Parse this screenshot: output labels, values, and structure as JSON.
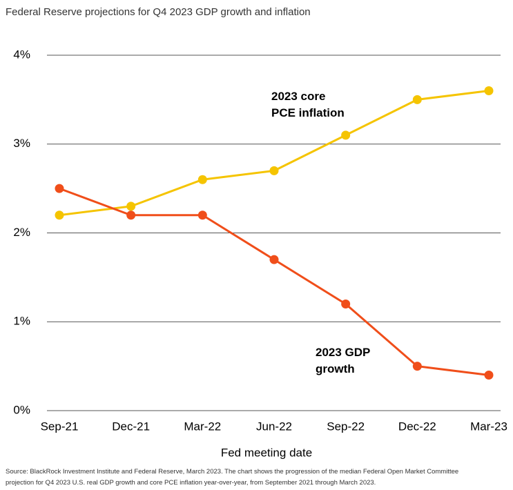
{
  "chart_data": {
    "type": "line",
    "title": "Federal Reserve projections for Q4 2023 GDP growth and inflation",
    "x_label": "Fed meeting date",
    "categories": [
      "Sep-21",
      "Dec-21",
      "Mar-22",
      "Jun-22",
      "Sep-22",
      "Dec-22",
      "Mar-23"
    ],
    "series": [
      {
        "name": "2023 core PCE inflation",
        "color": "#f5c400",
        "values": [
          2.2,
          2.3,
          2.6,
          2.7,
          3.1,
          3.5,
          3.6
        ]
      },
      {
        "name": "2023 GDP growth",
        "color": "#f04e1a",
        "values": [
          2.5,
          2.2,
          2.2,
          1.7,
          1.2,
          0.5,
          0.4
        ]
      }
    ],
    "ylim": [
      0,
      4
    ],
    "yticks": [
      {
        "value": 0,
        "label": "0%"
      },
      {
        "value": 1,
        "label": "1%"
      },
      {
        "value": 2,
        "label": "2%"
      },
      {
        "value": 3,
        "label": "3%"
      },
      {
        "value": 4,
        "label": "4%"
      }
    ],
    "grid": true,
    "source": "Source: BlackRock Investment Institute and Federal Reserve, March 2023. The chart shows the progression of the median Federal Open Market Committee projection for Q4 2023 U.S. real GDP growth and core PCE inflation year-over-year, from September 2021 through March 2023."
  }
}
